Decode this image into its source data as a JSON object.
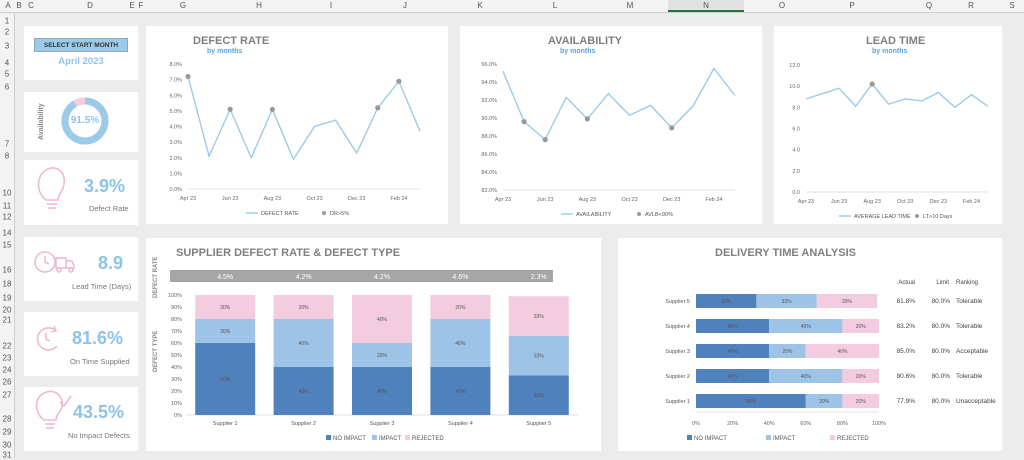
{
  "spreadsheet": {
    "columns": [
      "A",
      "B",
      "C",
      "D",
      "E",
      "F",
      "G",
      "H",
      "I",
      "J",
      "K",
      "L",
      "M",
      "N",
      "O",
      "P",
      "Q",
      "R",
      "S"
    ],
    "rows": [
      "1",
      "2",
      "3",
      "4",
      "5",
      "6",
      "7",
      "8",
      "10",
      "11",
      "12",
      "14",
      "15",
      "16",
      "18",
      "19",
      "20",
      "21",
      "22",
      "23",
      "24",
      "26",
      "27",
      "28",
      "29",
      "30",
      "31"
    ]
  },
  "selector": {
    "button_label": "SELECT START MONTH",
    "month": "April 2023"
  },
  "kpis": {
    "availability": {
      "label": "Availability",
      "value": "91.5%",
      "fraction": 0.915
    },
    "defect_rate": {
      "label": "Defect Rate",
      "value": "3.9%"
    },
    "lead_time": {
      "label": "Lead Time (Days)",
      "value": "8.9"
    },
    "on_time": {
      "label": "On Time Supplied",
      "value": "81.6%"
    },
    "no_impact": {
      "label": "No Impact Defects",
      "value": "43.5%"
    }
  },
  "colors": {
    "line": "#9ccbea",
    "marker": "#999999",
    "no_impact": "#4f81bd",
    "impact": "#9dc3e6",
    "rejected": "#f4cce0",
    "kpi": "#8dc3e8",
    "icon": "#f0b8cf",
    "header_bar": "#a6a6a6"
  },
  "icons": {
    "defect": "lightbulb-icon",
    "lead": "truck-clock-icon",
    "ontime": "refresh-clock-icon",
    "noimpact": "lightbulb-check-icon"
  },
  "chart_data": [
    {
      "type": "line",
      "title": "DEFECT RATE",
      "subtitle": "by months",
      "x": [
        "Apr 23",
        "May 23",
        "Jun 23",
        "Jul 23",
        "Aug 23",
        "Sep 23",
        "Oct 23",
        "Nov 23",
        "Dec 23",
        "Jan 24",
        "Feb 24",
        "Mar 24"
      ],
      "xticks": [
        "Apr 23",
        "Jun 23",
        "Aug 23",
        "Oct 23",
        "Dec 23",
        "Feb 24"
      ],
      "series": [
        {
          "name": "DEFECT RATE",
          "values": [
            7.2,
            2.1,
            5.1,
            2.0,
            5.1,
            1.9,
            4.0,
            4.4,
            2.3,
            5.2,
            6.9,
            3.7
          ]
        },
        {
          "name": "DR>5%",
          "values": [
            7.2,
            null,
            5.1,
            null,
            5.1,
            null,
            null,
            null,
            null,
            5.2,
            6.9,
            null
          ]
        }
      ],
      "ylim": [
        0,
        8
      ],
      "yticks": [
        "0.0%",
        "1.0%",
        "2.0%",
        "3.0%",
        "4.0%",
        "5.0%",
        "6.0%",
        "7.0%",
        "8.0%"
      ],
      "legend": "bottom"
    },
    {
      "type": "line",
      "title": "AVAILABILITY",
      "subtitle": "by months",
      "x": [
        "Apr 23",
        "May 23",
        "Jun 23",
        "Jul 23",
        "Aug 23",
        "Sep 23",
        "Oct 23",
        "Nov 23",
        "Dec 23",
        "Jan 24",
        "Feb 24",
        "Mar 24"
      ],
      "xticks": [
        "Apr 23",
        "Jun 23",
        "Aug 23",
        "Oct 23",
        "Dec 23",
        "Feb 24"
      ],
      "series": [
        {
          "name": "AVAILABILITY",
          "values": [
            95.2,
            89.6,
            87.6,
            92.3,
            89.9,
            92.7,
            90.3,
            91.4,
            88.9,
            91.3,
            95.5,
            92.5
          ]
        },
        {
          "name": "AVLB<90%",
          "values": [
            null,
            89.6,
            87.6,
            null,
            89.9,
            null,
            null,
            null,
            88.9,
            null,
            null,
            null
          ]
        }
      ],
      "ylim": [
        82,
        96
      ],
      "yticks": [
        "82.0%",
        "84.0%",
        "86.0%",
        "88.0%",
        "90.0%",
        "92.0%",
        "94.0%",
        "96.0%"
      ],
      "legend": "bottom"
    },
    {
      "type": "line",
      "title": "LEAD TIME",
      "subtitle": "by months",
      "x": [
        "Apr 23",
        "May 23",
        "Jun 23",
        "Jul 23",
        "Aug 23",
        "Sep 23",
        "Oct 23",
        "Nov 23",
        "Dec 23",
        "Jan 24",
        "Feb 24",
        "Mar 24"
      ],
      "xticks": [
        "Apr 23",
        "Jun 23",
        "Aug 23",
        "Oct 23",
        "Dec 23",
        "Feb 24"
      ],
      "series": [
        {
          "name": "AVERAGE LEAD TIME",
          "values": [
            8.8,
            9.3,
            9.8,
            8.1,
            10.2,
            8.3,
            8.8,
            8.6,
            9.4,
            8.0,
            9.2,
            8.1
          ]
        },
        {
          "name": "LT>10 Days",
          "values": [
            null,
            null,
            null,
            null,
            10.2,
            null,
            null,
            null,
            null,
            null,
            null,
            null
          ]
        }
      ],
      "ylim": [
        0,
        12
      ],
      "yticks": [
        "0.0",
        "2.0",
        "4.0",
        "6.0",
        "8.0",
        "10.0",
        "12.0"
      ],
      "legend": "bottom"
    },
    {
      "type": "bar",
      "stacked": true,
      "title": "SUPPLIER DEFECT RATE & DEFECT TYPE",
      "categories": [
        "Supplier 1",
        "Supplier 2",
        "Supplier 3",
        "Supplier 4",
        "Supplier 5"
      ],
      "defect_rate_labels": [
        "4.5%",
        "4.2%",
        "4.2%",
        "4.6%",
        "2.3%"
      ],
      "defect_rate_axis_label": "DEFECT RATE",
      "ylabel": "DEFECT TYPE",
      "series": [
        {
          "name": "NO IMPACT",
          "values": [
            60,
            40,
            40,
            40,
            33
          ],
          "labels": [
            "60%",
            "40%",
            "40%",
            "40%",
            "33%"
          ]
        },
        {
          "name": "IMPACT",
          "values": [
            20,
            40,
            20,
            40,
            33
          ],
          "labels": [
            "20%",
            "40%",
            "20%",
            "40%",
            "33%"
          ]
        },
        {
          "name": "REJECTED",
          "values": [
            20,
            20,
            40,
            20,
            33
          ],
          "labels": [
            "20%",
            "20%",
            "40%",
            "20%",
            "33%"
          ]
        }
      ],
      "ylim": [
        0,
        100
      ],
      "yticks": [
        "0%",
        "10%",
        "20%",
        "30%",
        "40%",
        "50%",
        "60%",
        "70%",
        "80%",
        "90%",
        "100%"
      ],
      "legend": "bottom"
    },
    {
      "type": "bar",
      "orientation": "horizontal",
      "stacked": true,
      "title": "DELIVERY TIME ANALYSIS",
      "categories": [
        "Supplier 5",
        "Supplier 4",
        "Supplier 3",
        "Supplier 2",
        "Supplier 1"
      ],
      "series": [
        {
          "name": "NO IMPACT",
          "values": [
            33,
            40,
            40,
            40,
            60
          ],
          "labels": [
            "33%",
            "40%",
            "40%",
            "40%",
            "60%"
          ]
        },
        {
          "name": "IMPACT",
          "values": [
            33,
            40,
            20,
            40,
            20
          ],
          "labels": [
            "33%",
            "40%",
            "20%",
            "40%",
            "20%"
          ]
        },
        {
          "name": "REJECTED",
          "values": [
            33,
            20,
            40,
            20,
            20
          ],
          "labels": [
            "33%",
            "20%",
            "40%",
            "20%",
            "20%"
          ]
        }
      ],
      "xlim": [
        0,
        100
      ],
      "xticks": [
        "0%",
        "20%",
        "40%",
        "60%",
        "80%",
        "100%"
      ],
      "table_headers": [
        "Actual",
        "Limit",
        "Ranking"
      ],
      "table": [
        {
          "actual": "81.8%",
          "limit": "80.0%",
          "ranking": "Tolerable"
        },
        {
          "actual": "83.2%",
          "limit": "80.0%",
          "ranking": "Tolerable"
        },
        {
          "actual": "85.0%",
          "limit": "80.0%",
          "ranking": "Acceptable"
        },
        {
          "actual": "80.6%",
          "limit": "80.0%",
          "ranking": "Tolerable"
        },
        {
          "actual": "77.9%",
          "limit": "80.0%",
          "ranking": "Unacceptable"
        }
      ],
      "legend": "bottom"
    }
  ]
}
